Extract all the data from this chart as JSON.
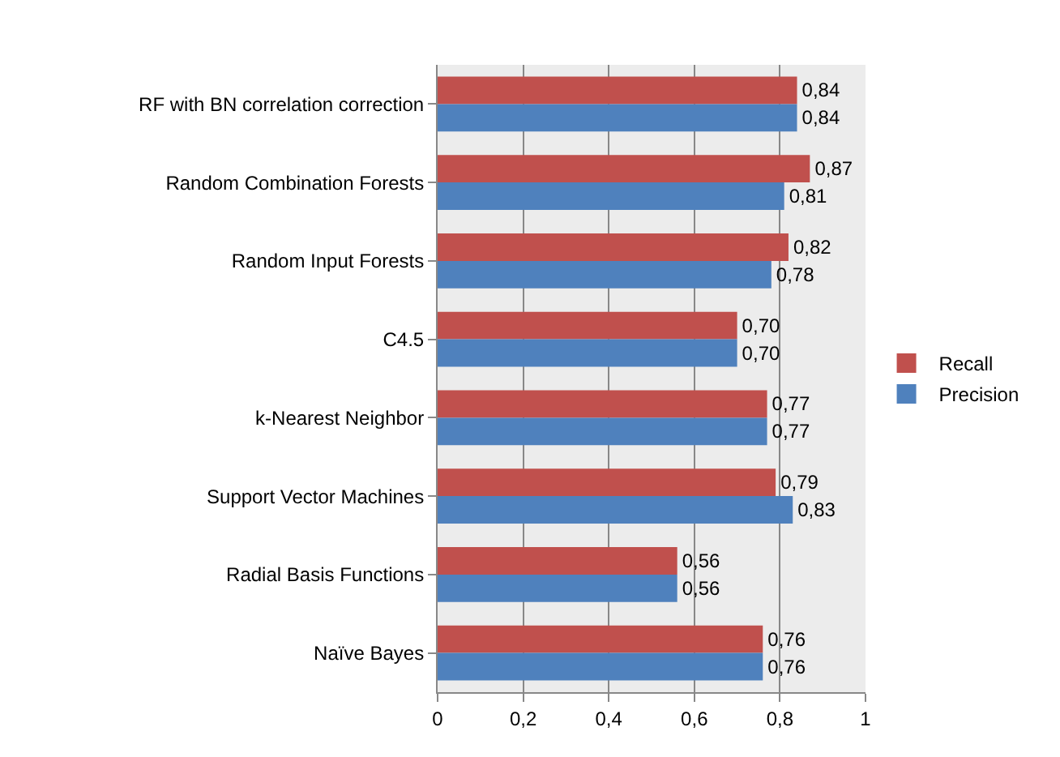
{
  "chart_data": {
    "type": "bar",
    "orientation": "horizontal",
    "categories": [
      "RF with BN correlation correction",
      "Random Combination Forests",
      "Random Input Forests",
      "C4.5",
      "k-Nearest Neighbor",
      "Support Vector Machines",
      "Radial Basis Functions",
      "Naïve Bayes"
    ],
    "series": [
      {
        "name": "Recall",
        "color": "#c0504d",
        "values": [
          0.84,
          0.87,
          0.82,
          0.7,
          0.77,
          0.79,
          0.56,
          0.76
        ],
        "value_labels": [
          "0,84",
          "0,87",
          "0,82",
          "0,70",
          "0,77",
          "0,79",
          "0,56",
          "0,76"
        ]
      },
      {
        "name": "Precision",
        "color": "#4f81bd",
        "values": [
          0.84,
          0.81,
          0.78,
          0.7,
          0.77,
          0.83,
          0.56,
          0.76
        ],
        "value_labels": [
          "0,84",
          "0,81",
          "0,78",
          "0,70",
          "0,77",
          "0,83",
          "0,56",
          "0,76"
        ]
      }
    ],
    "xlim": [
      0,
      1
    ],
    "xticks": [
      {
        "value": 0,
        "label": "0"
      },
      {
        "value": 0.2,
        "label": "0,2"
      },
      {
        "value": 0.4,
        "label": "0,4"
      },
      {
        "value": 0.6,
        "label": "0,6"
      },
      {
        "value": 0.8,
        "label": "0,8"
      },
      {
        "value": 1,
        "label": "1"
      }
    ],
    "grid": "x",
    "legend": "right"
  }
}
